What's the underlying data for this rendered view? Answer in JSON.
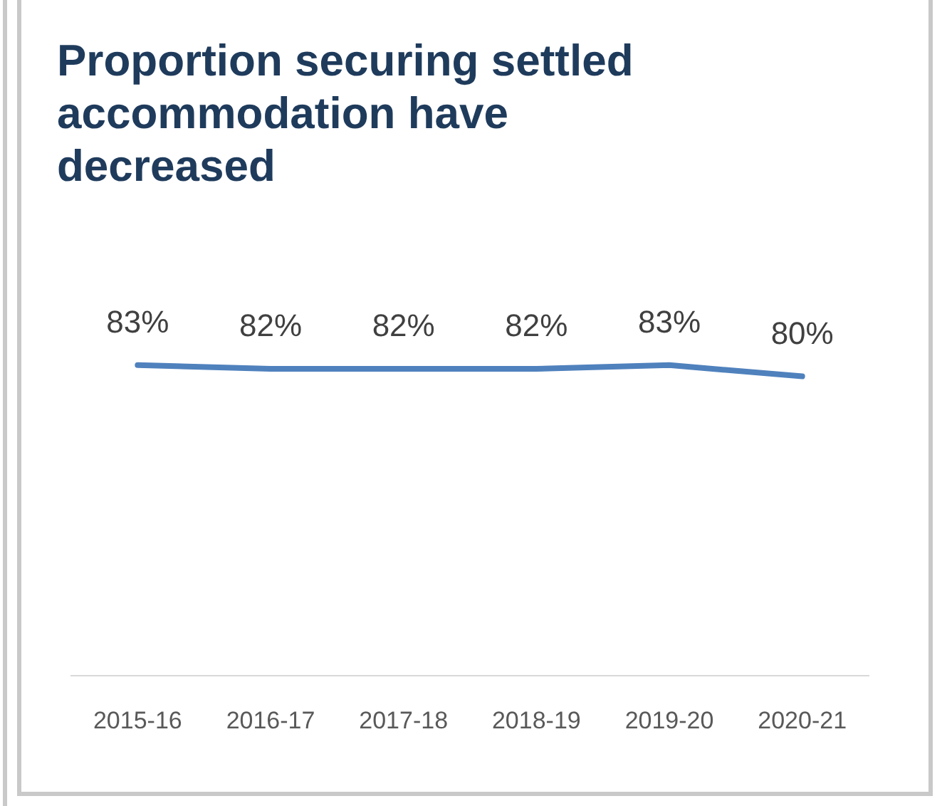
{
  "chart_data": {
    "type": "line",
    "title": "Proportion securing settled accommodation have decreased",
    "categories": [
      "2015-16",
      "2016-17",
      "2017-18",
      "2018-19",
      "2019-20",
      "2020-21"
    ],
    "series": [
      {
        "color": "#4f81bd",
        "values": [
          83,
          82,
          82,
          82,
          83,
          80
        ],
        "value_labels": [
          "83%",
          "82%",
          "82%",
          "82%",
          "83%",
          "80%"
        ]
      }
    ],
    "grid": false,
    "legend": false,
    "marker": "none",
    "tick_labels": "x"
  }
}
